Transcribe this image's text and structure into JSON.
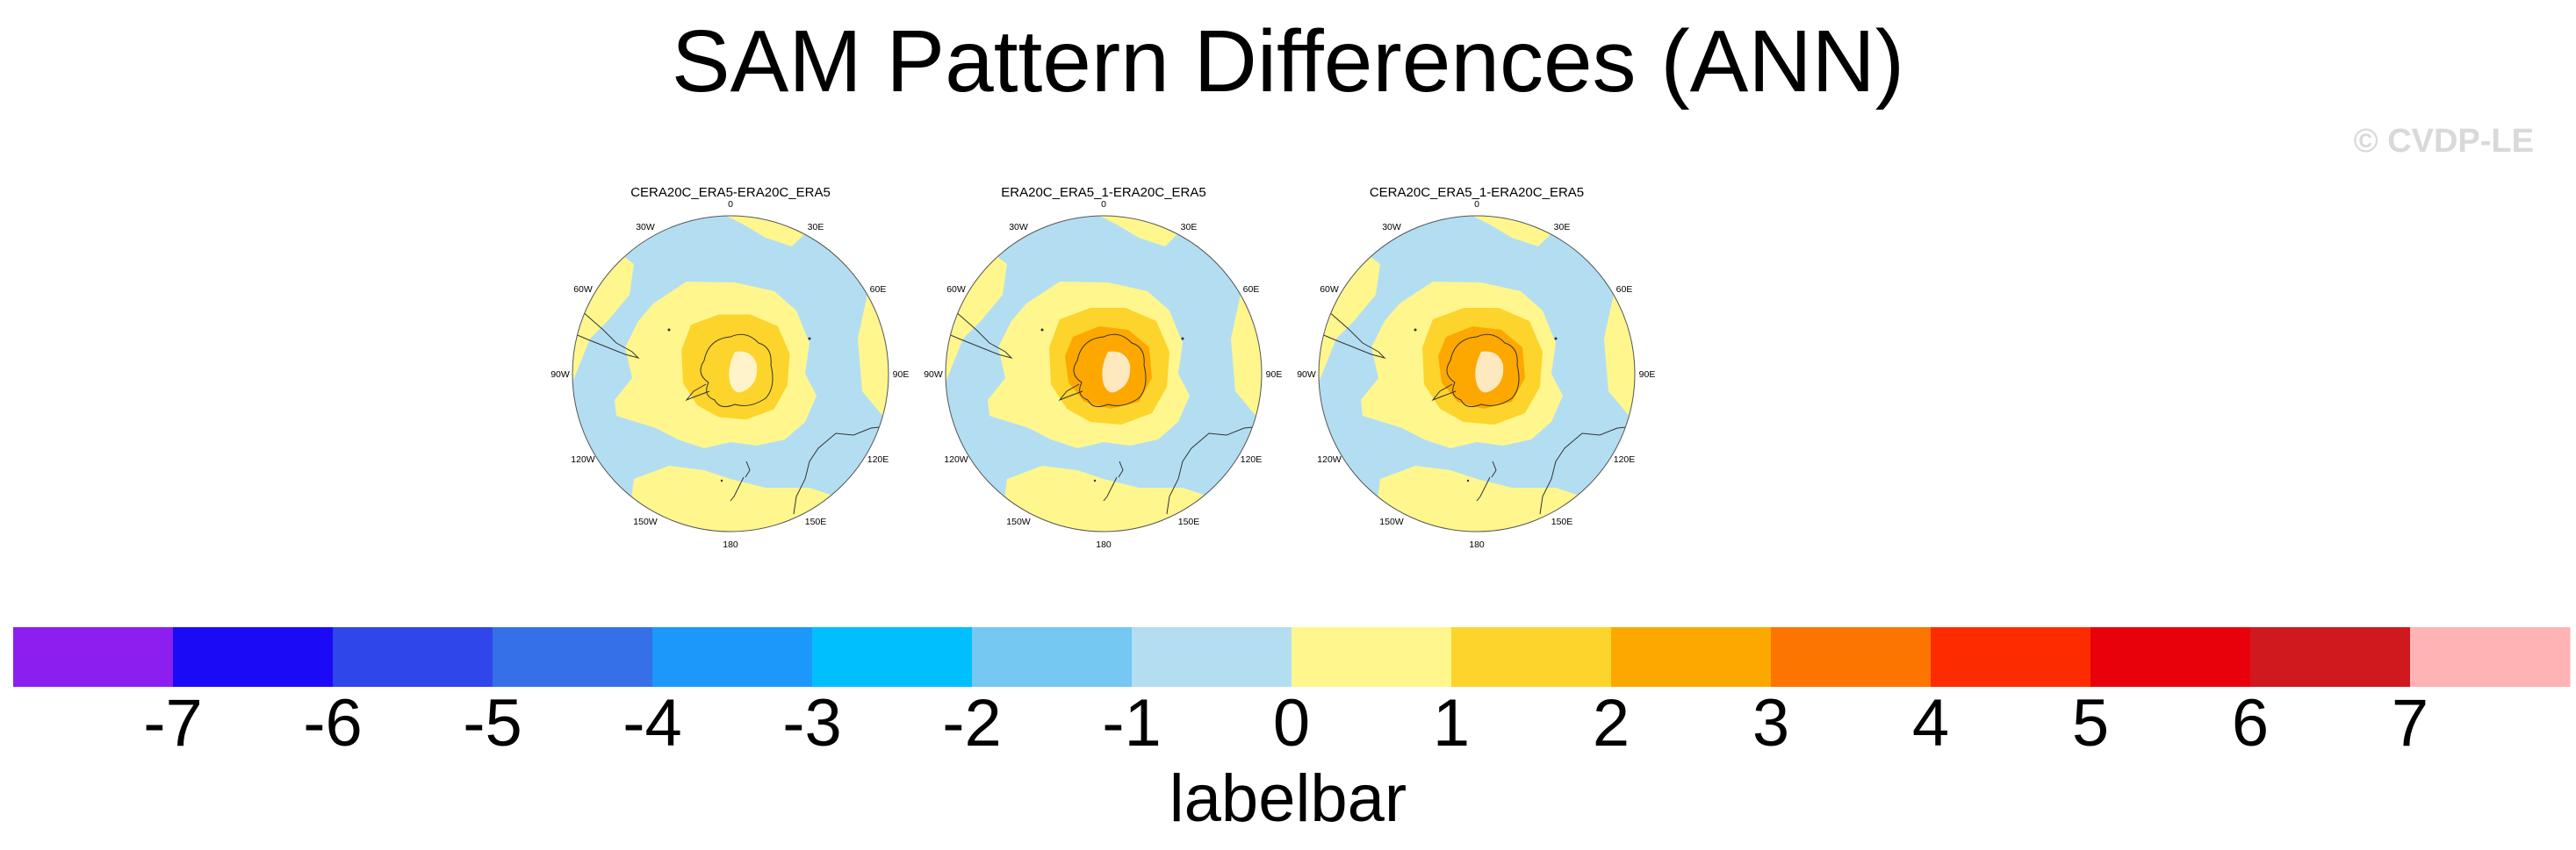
{
  "title": "SAM Pattern Differences (ANN)",
  "watermark": "© CVDP-LE",
  "maps": [
    {
      "title": "CERA20C_ERA5-ERA20C_ERA5"
    },
    {
      "title": "ERA20C_ERA5_1-ERA20C_ERA5"
    },
    {
      "title": "CERA20C_ERA5_1-ERA20C_ERA5"
    }
  ],
  "longitude_labels": [
    "0",
    "30E",
    "60E",
    "90E",
    "120E",
    "150E",
    "180",
    "150W",
    "120W",
    "90W",
    "60W",
    "30W"
  ],
  "chart_data": {
    "type": "heatmap",
    "projection": "south polar stereographic",
    "labelbar_title": "labelbar",
    "levels": [
      -7,
      -6,
      -5,
      -4,
      -3,
      -2,
      -1,
      0,
      1,
      2,
      3,
      4,
      5,
      6,
      7
    ],
    "colors": [
      "#8c1ff0",
      "#1a0af5",
      "#2e46ea",
      "#3670e8",
      "#1c98fa",
      "#00bfff",
      "#74c8f2",
      "#b3def2",
      "#fff68e",
      "#fdd42b",
      "#fca800",
      "#fc7500",
      "#fd2c00",
      "#e8000b",
      "#d0191e",
      "#ffb3b4"
    ],
    "map_fields": {
      "ocean_bins": "-1 to 0 (light blue) with 0 to 1 (pale yellow) ring around Antarctica",
      "center_bins": "1 to 2 and 2 to 3 over Antarctica"
    }
  }
}
